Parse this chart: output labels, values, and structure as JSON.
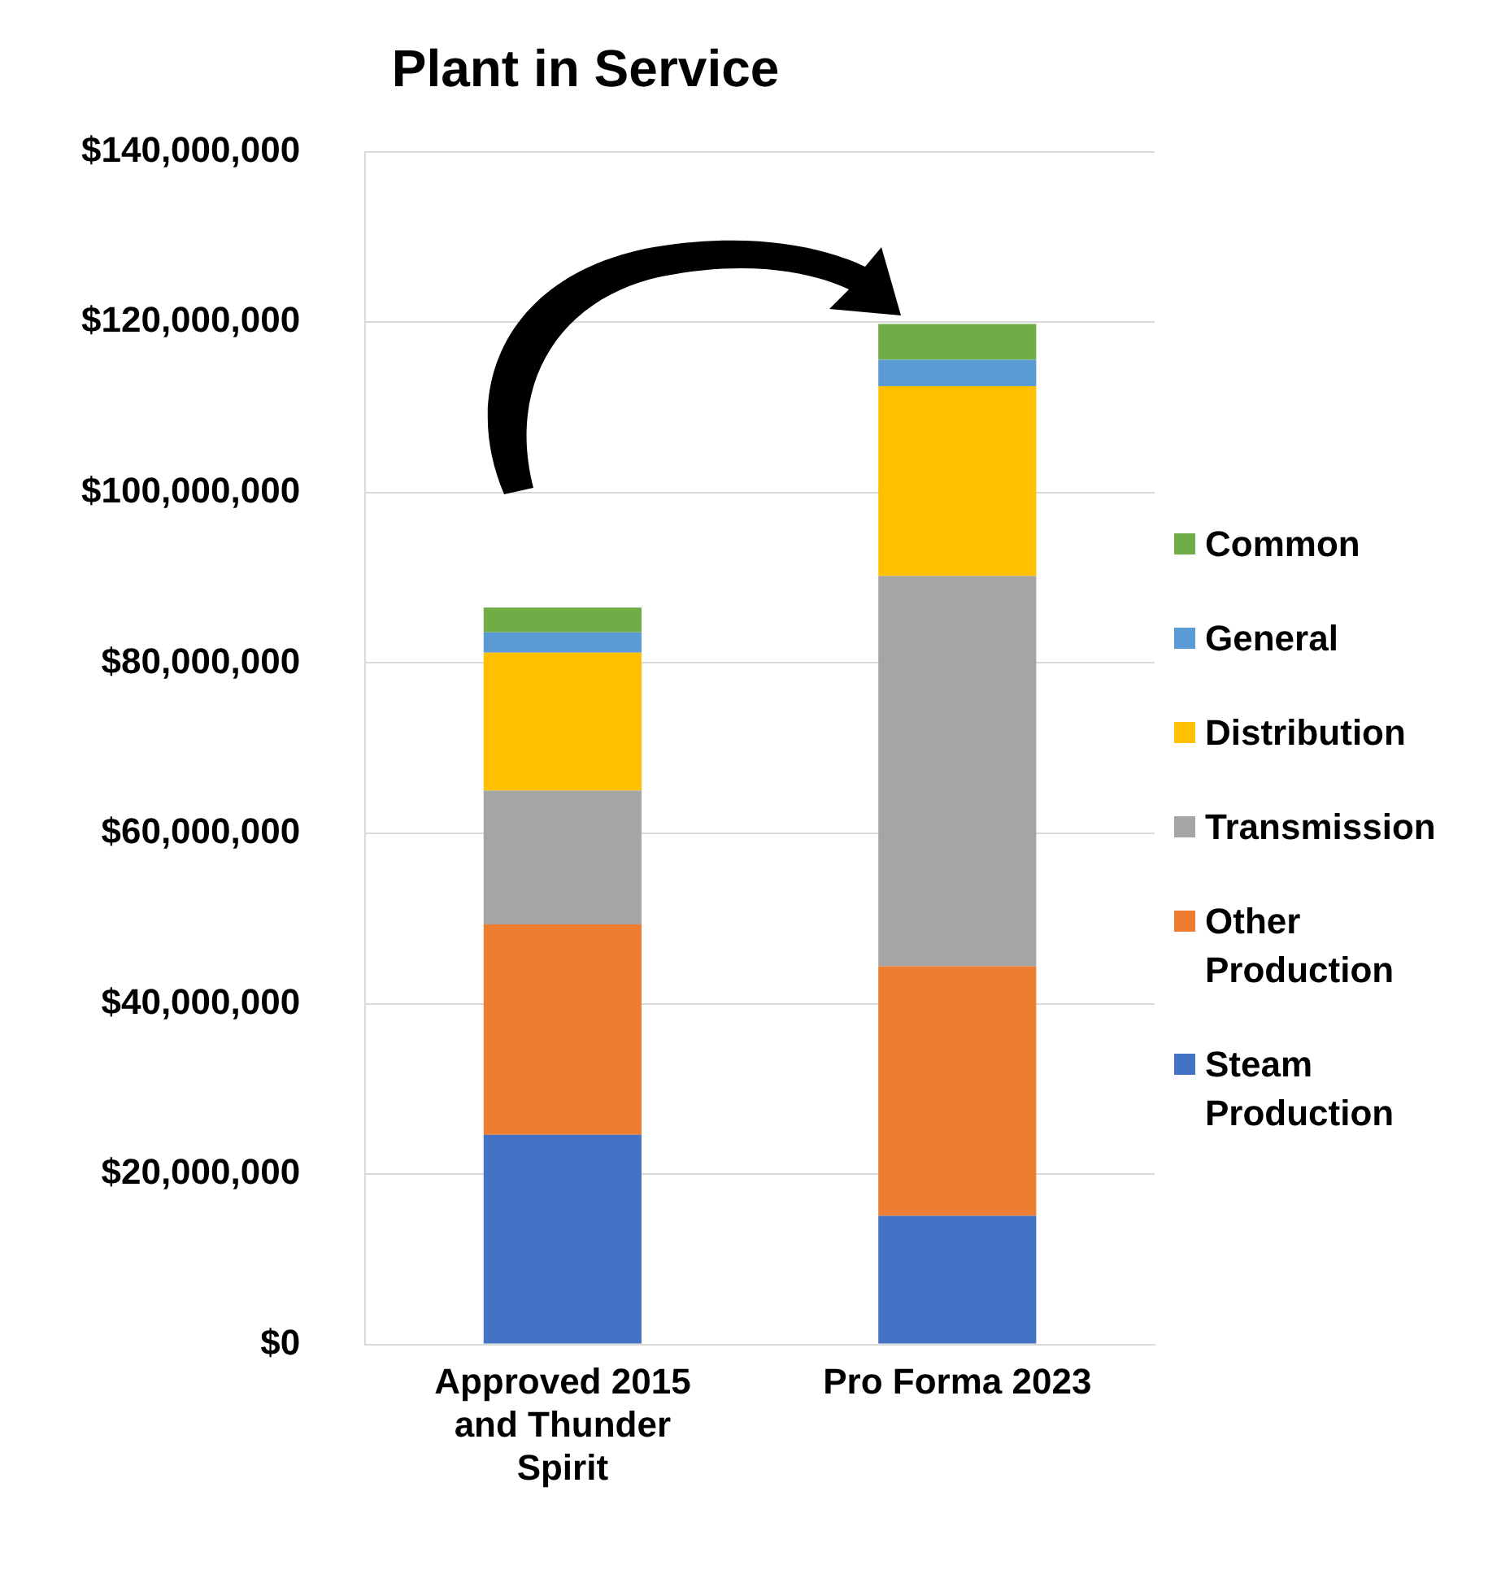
{
  "chart_data": {
    "type": "bar",
    "title": "Plant in Service",
    "categories": [
      "Approved 2015 and Thunder Spirit",
      "Pro Forma 2023"
    ],
    "stacked": true,
    "series": [
      {
        "name": "Steam Production",
        "color": "#4472c4",
        "values": [
          24600000,
          15100000
        ]
      },
      {
        "name": "Other Production",
        "color": "#ed7d31",
        "values": [
          24700000,
          29300000
        ]
      },
      {
        "name": "Transmission",
        "color": "#a5a5a5",
        "values": [
          15700000,
          45800000
        ]
      },
      {
        "name": "Distribution",
        "color": "#ffc000",
        "values": [
          16200000,
          22300000
        ]
      },
      {
        "name": "General",
        "color": "#5b9bd5",
        "values": [
          2400000,
          3100000
        ]
      },
      {
        "name": "Common",
        "color": "#70ad47",
        "values": [
          2900000,
          4200000
        ]
      }
    ],
    "ylim": [
      0,
      140000000
    ],
    "yticks": [
      {
        "value": 0,
        "label": "$0"
      },
      {
        "value": 20000000,
        "label": "$20,000,000"
      },
      {
        "value": 40000000,
        "label": "$40,000,000"
      },
      {
        "value": 60000000,
        "label": "$60,000,000"
      },
      {
        "value": 80000000,
        "label": "$80,000,000"
      },
      {
        "value": 100000000,
        "label": "$100,000,000"
      },
      {
        "value": 120000000,
        "label": "$120,000,000"
      },
      {
        "value": 140000000,
        "label": "$140,000,000"
      }
    ],
    "grid": "y",
    "legend": "right"
  }
}
